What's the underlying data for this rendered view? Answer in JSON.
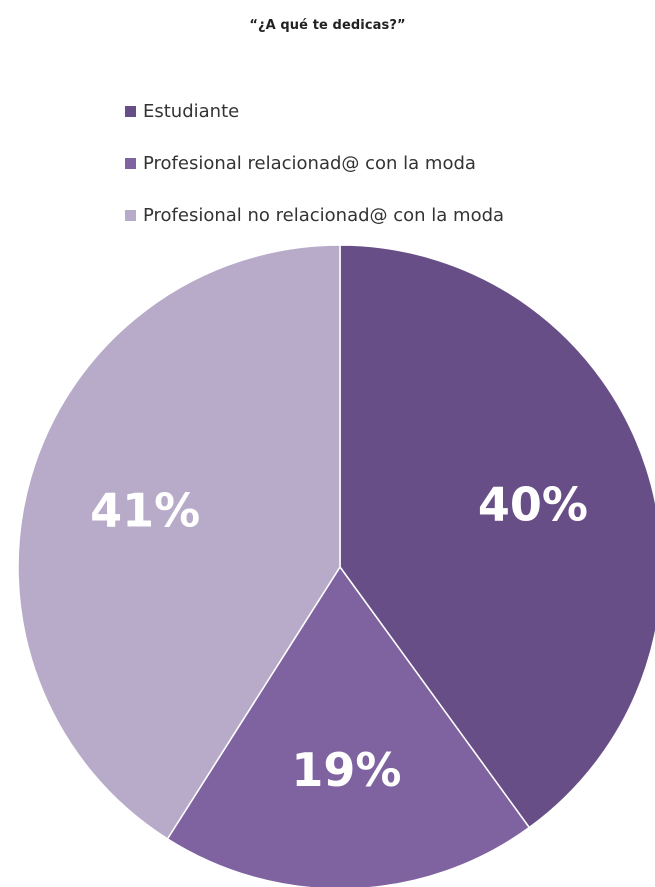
{
  "chart_data": {
    "type": "pie",
    "title": "“¿A qué te dedicas?”",
    "legend_position": "top",
    "categories": [
      "Estudiante",
      "Profesional relacionad@ con la moda",
      "Profesional no relacionad@ con la moda"
    ],
    "values": [
      40,
      19,
      41
    ],
    "value_labels": [
      "40%",
      "19%",
      "41%"
    ],
    "colors": [
      "#684e86",
      "#7f63a0",
      "#b8abc9"
    ]
  }
}
